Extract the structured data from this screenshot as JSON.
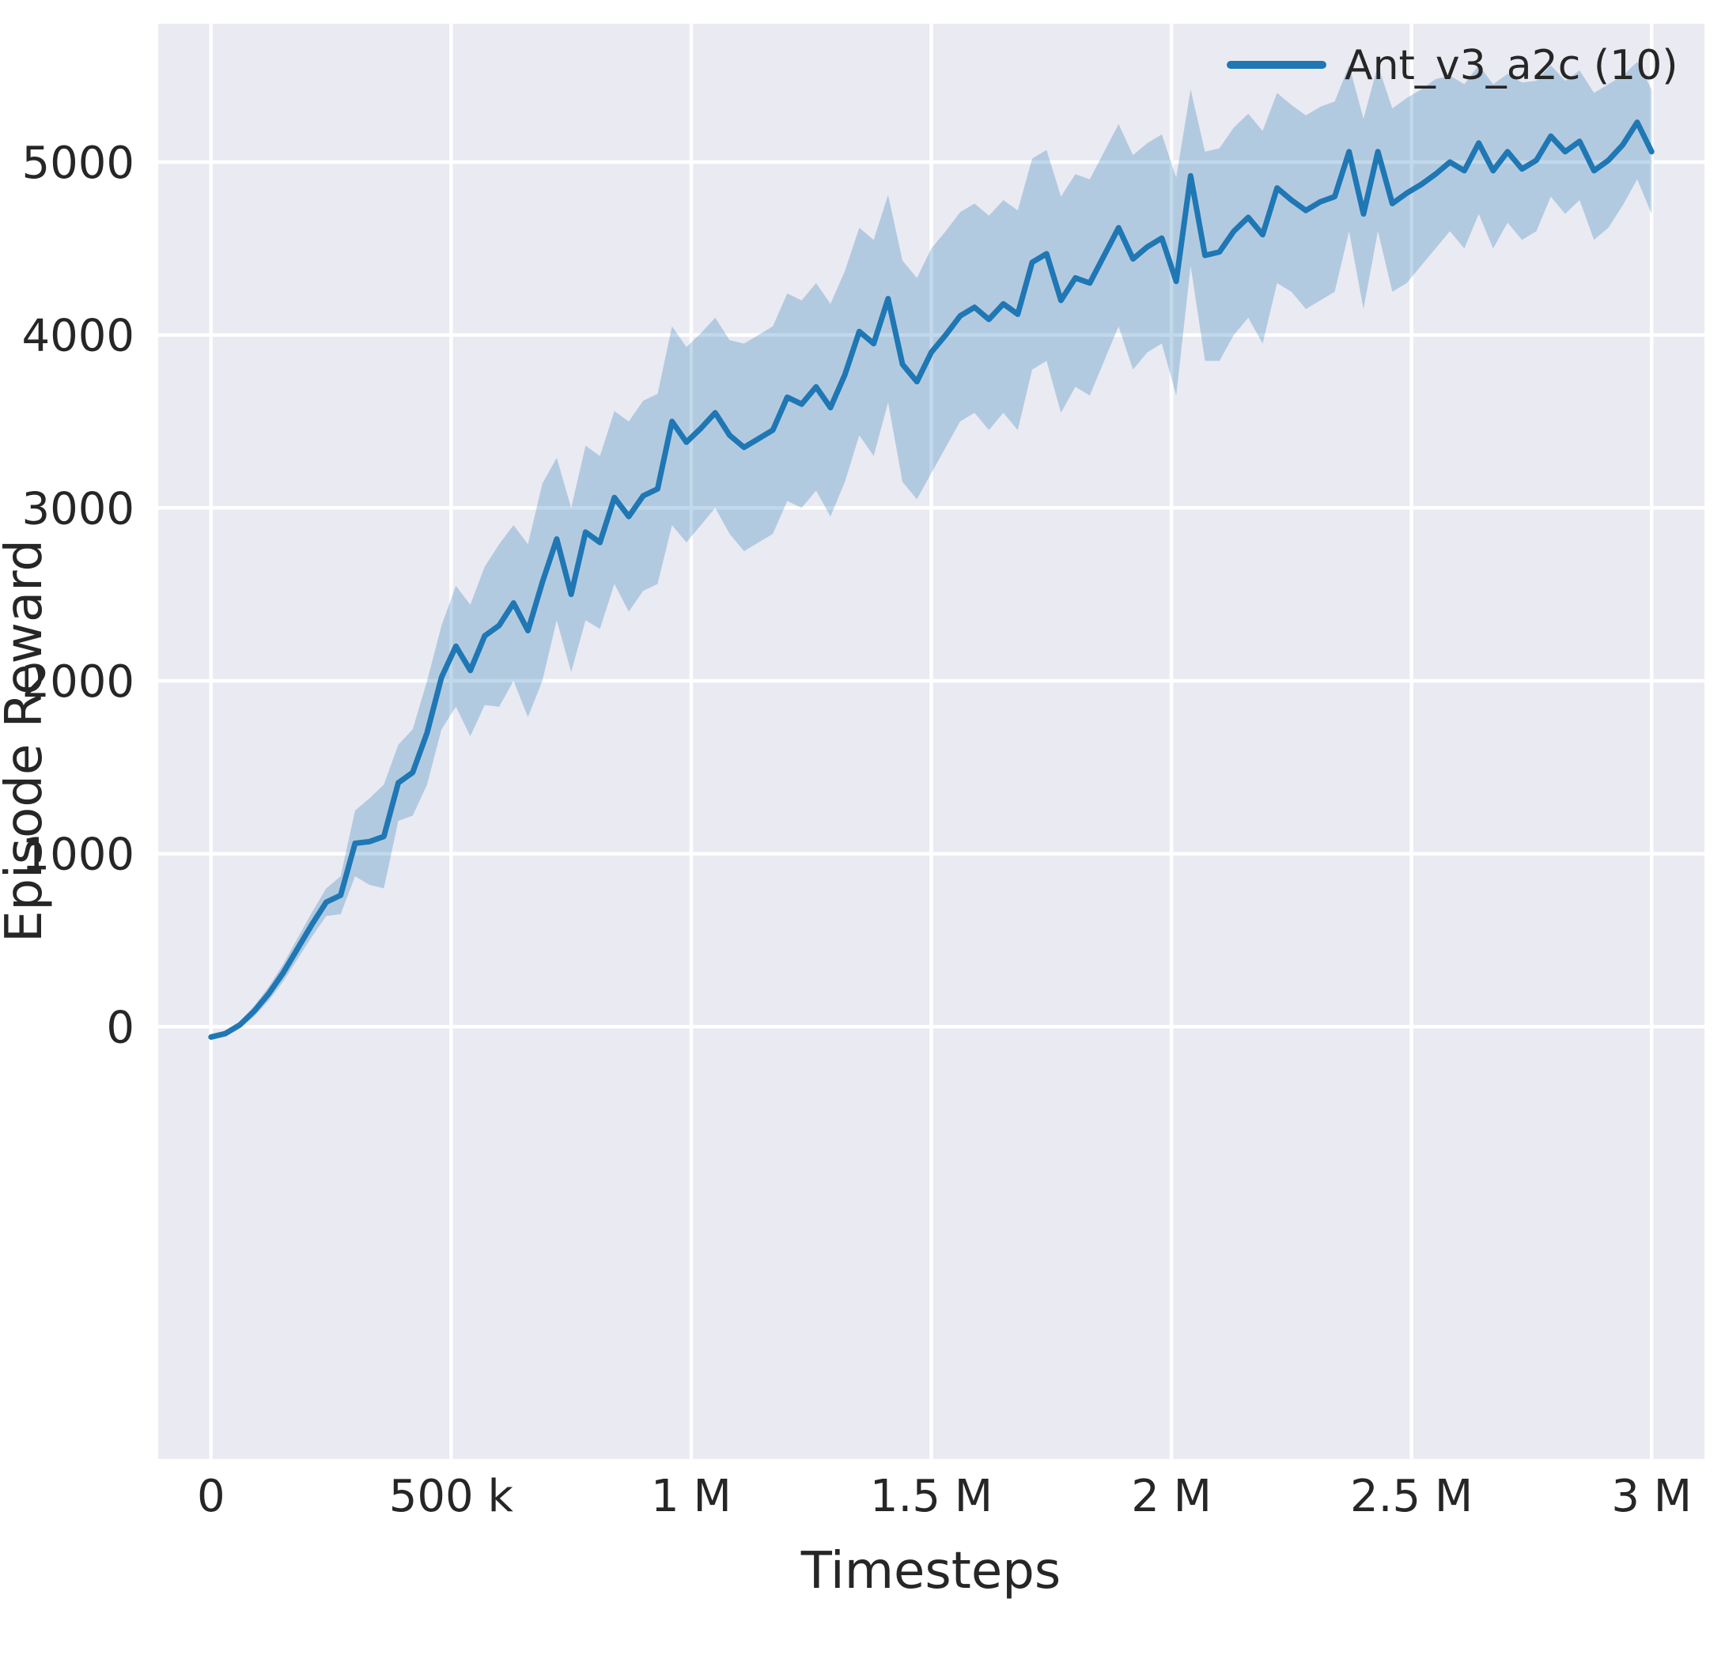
{
  "figure": {
    "background": "#ffffff",
    "plot_background": "#eaeaf2",
    "grid_color": "#ffffff",
    "text_color": "#262626"
  },
  "chart_data": {
    "type": "line",
    "title": "",
    "xlabel": "Timesteps",
    "ylabel": "Episode Reward",
    "xlim": [
      -110000,
      3110000
    ],
    "ylim": [
      -2500,
      5800
    ],
    "grid": true,
    "legend_position": "upper right",
    "x_ticks": {
      "values": [
        0,
        500000,
        1000000,
        1500000,
        2000000,
        2500000,
        3000000
      ],
      "labels": [
        "0",
        "500 k",
        "1 M",
        "1.5 M",
        "2 M",
        "2.5 M",
        "3 M"
      ]
    },
    "y_ticks": {
      "values": [
        0,
        1000,
        2000,
        3000,
        4000,
        5000
      ],
      "labels": [
        "0",
        "1000",
        "2000",
        "3000",
        "4000",
        "5000"
      ]
    },
    "series": [
      {
        "name": "Ant_v3_a2c (10)",
        "color": "#1f77b4",
        "line_width": 7,
        "band_opacity": 0.28,
        "x": [
          0,
          30000,
          60000,
          90000,
          120000,
          150000,
          180000,
          210000,
          240000,
          270000,
          300000,
          330000,
          360000,
          390000,
          420000,
          450000,
          480000,
          510000,
          540000,
          570000,
          600000,
          630000,
          660000,
          690000,
          720000,
          750000,
          780000,
          810000,
          840000,
          870000,
          900000,
          930000,
          960000,
          990000,
          1020000,
          1050000,
          1080000,
          1110000,
          1140000,
          1170000,
          1200000,
          1230000,
          1260000,
          1290000,
          1320000,
          1350000,
          1380000,
          1410000,
          1440000,
          1470000,
          1500000,
          1530000,
          1560000,
          1590000,
          1620000,
          1650000,
          1680000,
          1710000,
          1740000,
          1770000,
          1800000,
          1830000,
          1860000,
          1890000,
          1920000,
          1950000,
          1980000,
          2010000,
          2040000,
          2070000,
          2100000,
          2130000,
          2160000,
          2190000,
          2220000,
          2250000,
          2280000,
          2310000,
          2340000,
          2370000,
          2400000,
          2430000,
          2460000,
          2490000,
          2520000,
          2550000,
          2580000,
          2610000,
          2640000,
          2670000,
          2700000,
          2730000,
          2760000,
          2790000,
          2820000,
          2850000,
          2880000,
          2910000,
          2940000,
          2970000,
          3000000
        ],
        "y": [
          -60,
          -40,
          10,
          90,
          190,
          310,
          450,
          590,
          720,
          760,
          1060,
          1070,
          1100,
          1410,
          1470,
          1700,
          2020,
          2200,
          2060,
          2260,
          2320,
          2450,
          2290,
          2570,
          2820,
          2500,
          2860,
          2800,
          3060,
          2950,
          3070,
          3110,
          3500,
          3380,
          3460,
          3550,
          3420,
          3350,
          3400,
          3450,
          3640,
          3600,
          3700,
          3580,
          3770,
          4020,
          3950,
          4210,
          3830,
          3730,
          3900,
          4000,
          4110,
          4160,
          4090,
          4180,
          4120,
          4420,
          4470,
          4200,
          4330,
          4300,
          4460,
          4620,
          4440,
          4510,
          4560,
          4310,
          4920,
          4460,
          4480,
          4600,
          4680,
          4580,
          4850,
          4780,
          4720,
          4770,
          4800,
          5060,
          4700,
          5060,
          4760,
          4820,
          4870,
          4930,
          5000,
          4950,
          5110,
          4950,
          5060,
          4960,
          5010,
          5150,
          5060,
          5120,
          4950,
          5010,
          5100,
          5230,
          5060
        ],
        "band_lower": [
          -75,
          -55,
          -10,
          60,
          150,
          260,
          390,
          520,
          640,
          650,
          870,
          820,
          800,
          1190,
          1220,
          1400,
          1720,
          1850,
          1680,
          1860,
          1850,
          2000,
          1790,
          2000,
          2350,
          2050,
          2350,
          2300,
          2560,
          2400,
          2520,
          2560,
          2900,
          2800,
          2900,
          3000,
          2850,
          2750,
          2800,
          2850,
          3040,
          3000,
          3100,
          2950,
          3150,
          3420,
          3300,
          3610,
          3150,
          3050,
          3200,
          3350,
          3500,
          3550,
          3450,
          3550,
          3450,
          3800,
          3850,
          3550,
          3700,
          3650,
          3850,
          4050,
          3800,
          3900,
          3950,
          3650,
          4400,
          3850,
          3850,
          4000,
          4100,
          3950,
          4300,
          4250,
          4150,
          4200,
          4250,
          4600,
          4150,
          4600,
          4250,
          4300,
          4400,
          4500,
          4600,
          4500,
          4700,
          4500,
          4650,
          4550,
          4600,
          4800,
          4700,
          4780,
          4550,
          4620,
          4750,
          4900,
          4700
        ],
        "band_upper": [
          -45,
          -25,
          30,
          120,
          230,
          360,
          510,
          660,
          800,
          870,
          1250,
          1320,
          1400,
          1630,
          1720,
          2000,
          2320,
          2550,
          2440,
          2660,
          2790,
          2900,
          2790,
          3140,
          3290,
          3000,
          3360,
          3300,
          3560,
          3500,
          3620,
          3660,
          4050,
          3930,
          4010,
          4100,
          3970,
          3950,
          4000,
          4050,
          4240,
          4200,
          4300,
          4180,
          4370,
          4620,
          4550,
          4810,
          4430,
          4330,
          4500,
          4600,
          4710,
          4760,
          4690,
          4780,
          4720,
          5020,
          5070,
          4800,
          4930,
          4900,
          5060,
          5220,
          5040,
          5110,
          5160,
          4910,
          5420,
          5060,
          5080,
          5200,
          5280,
          5180,
          5400,
          5330,
          5270,
          5320,
          5350,
          5560,
          5250,
          5560,
          5310,
          5370,
          5420,
          5480,
          5500,
          5450,
          5560,
          5450,
          5510,
          5460,
          5470,
          5560,
          5470,
          5530,
          5400,
          5450,
          5500,
          5580,
          5420
        ]
      }
    ]
  }
}
